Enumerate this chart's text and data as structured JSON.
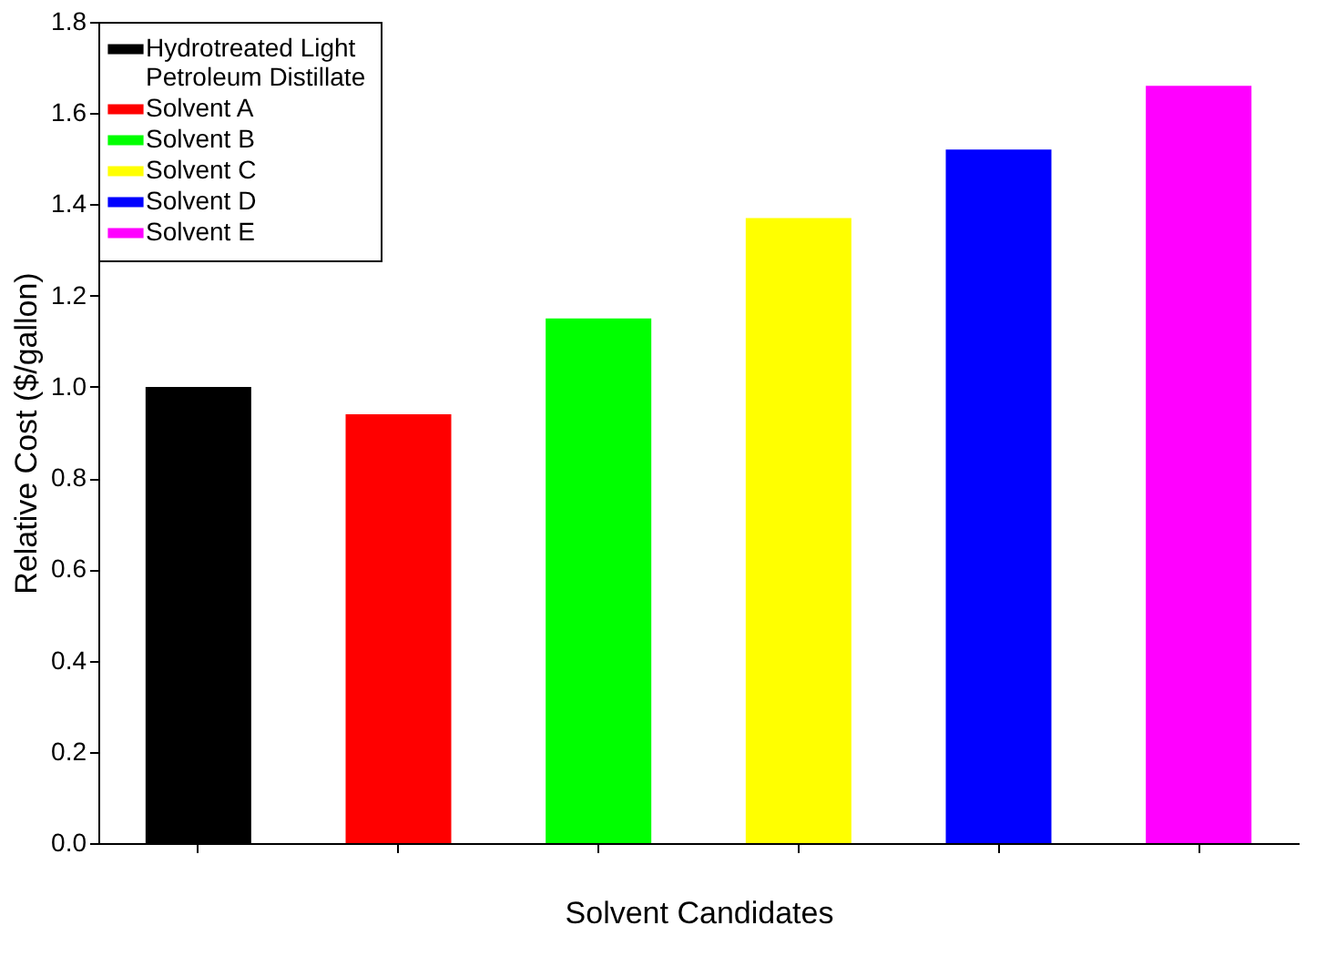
{
  "chart_data": {
    "type": "bar",
    "xlabel": "Solvent Candidates",
    "ylabel": "Relative Cost ($/gallon)",
    "categories": [
      null,
      null,
      null,
      null,
      null,
      null
    ],
    "series": [
      {
        "name": "Hydrotreated Light Petroleum Distillate",
        "color": "#000000",
        "values": [
          1.0,
          null,
          null,
          null,
          null,
          null
        ]
      },
      {
        "name": "Solvent A",
        "color": "#ff0000",
        "values": [
          null,
          0.94,
          null,
          null,
          null,
          null
        ]
      },
      {
        "name": "Solvent B",
        "color": "#00ff00",
        "values": [
          null,
          null,
          1.15,
          null,
          null,
          null
        ]
      },
      {
        "name": "Solvent C",
        "color": "#ffff00",
        "values": [
          null,
          null,
          null,
          1.37,
          null,
          null
        ]
      },
      {
        "name": "Solvent D",
        "color": "#0000ff",
        "values": [
          null,
          null,
          null,
          null,
          1.52,
          null
        ]
      },
      {
        "name": "Solvent E",
        "color": "#ff00ff",
        "values": [
          null,
          null,
          null,
          null,
          null,
          1.66
        ]
      }
    ],
    "ylim": [
      0,
      1.8
    ],
    "yticks": [
      {
        "value": 0,
        "label": "0.0"
      },
      0.2,
      0.4,
      0.6,
      0.8,
      {
        "value": 1,
        "label": "1.0"
      },
      1.2,
      1.4,
      1.6,
      1.8
    ],
    "legend": "top left",
    "grid": false,
    "tick_labels": "y"
  }
}
